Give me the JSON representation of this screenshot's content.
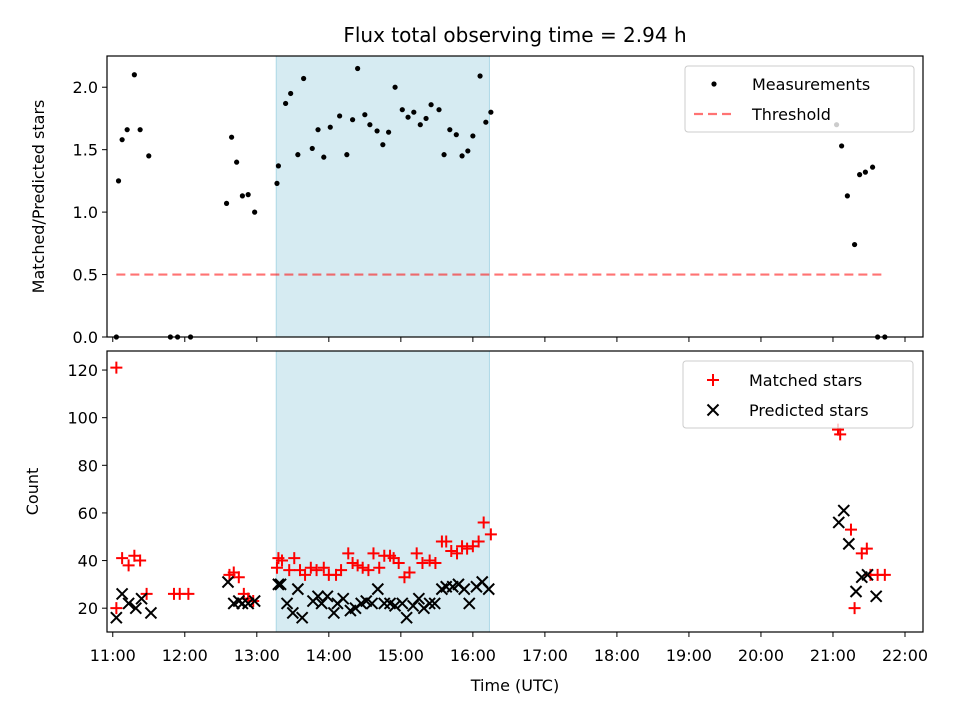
{
  "title": "Flux total observing time = 2.94 h",
  "colors": {
    "band": "#add8e6",
    "matched": "#ff0000",
    "predicted": "#000000",
    "threshold": "#ff0000",
    "measurement": "#000000"
  },
  "chart_data": [
    {
      "type": "scatter",
      "panel": "top",
      "ylabel": "Matched/Predicted stars",
      "xlim": [
        10.92,
        22.25
      ],
      "ylim": [
        0,
        2.25
      ],
      "yticks": [
        0.0,
        0.5,
        1.0,
        1.5,
        2.0
      ],
      "ytick_labels": [
        "0.0",
        "0.5",
        "1.0",
        "1.5",
        "2.0"
      ],
      "grid": false,
      "legend_position": "top-right",
      "shaded_interval": [
        13.27,
        16.23
      ],
      "threshold": {
        "name": "Threshold",
        "y": 0.5,
        "x": [
          11.05,
          21.7
        ],
        "style": "dashed"
      },
      "series": [
        {
          "name": "Measurements",
          "x": [
            11.05,
            11.08,
            11.13,
            11.2,
            11.3,
            11.38,
            11.5,
            11.8,
            11.9,
            12.08,
            12.58,
            12.65,
            12.72,
            12.8,
            12.88,
            12.97,
            13.28,
            13.3,
            13.4,
            13.47,
            13.57,
            13.65,
            13.77,
            13.85,
            13.93,
            14.02,
            14.15,
            14.25,
            14.33,
            14.4,
            14.5,
            14.57,
            14.67,
            14.75,
            14.83,
            14.92,
            15.02,
            15.1,
            15.18,
            15.27,
            15.35,
            15.42,
            15.53,
            15.6,
            15.68,
            15.77,
            15.85,
            15.93,
            16.0,
            16.1,
            16.18,
            16.25,
            21.05,
            21.12,
            21.2,
            21.3,
            21.37,
            21.45,
            21.55,
            21.62,
            21.72
          ],
          "y": [
            0.0,
            1.25,
            1.58,
            1.66,
            2.1,
            1.66,
            1.45,
            0.0,
            0.0,
            0.0,
            1.07,
            1.6,
            1.4,
            1.13,
            1.14,
            1.0,
            1.23,
            1.37,
            1.87,
            1.95,
            1.46,
            2.07,
            1.51,
            1.66,
            1.44,
            1.68,
            1.77,
            1.46,
            1.74,
            2.15,
            1.78,
            1.7,
            1.65,
            1.54,
            1.64,
            2.0,
            1.82,
            1.76,
            1.8,
            1.7,
            1.75,
            1.86,
            1.82,
            1.46,
            1.66,
            1.62,
            1.45,
            1.49,
            1.61,
            2.09,
            1.72,
            1.8,
            1.7,
            1.53,
            1.13,
            0.74,
            1.3,
            1.32,
            1.36,
            0.0,
            0.0
          ]
        }
      ]
    },
    {
      "type": "scatter",
      "panel": "bottom",
      "xlabel": "Time (UTC)",
      "ylabel": "Count",
      "xlim": [
        10.92,
        22.25
      ],
      "ylim": [
        10,
        128
      ],
      "xticks": [
        11,
        12,
        13,
        14,
        15,
        16,
        17,
        18,
        19,
        20,
        21,
        22
      ],
      "xtick_labels": [
        "11:00",
        "12:00",
        "13:00",
        "14:00",
        "15:00",
        "16:00",
        "17:00",
        "18:00",
        "19:00",
        "20:00",
        "21:00",
        "22:00"
      ],
      "yticks": [
        20,
        40,
        60,
        80,
        100,
        120
      ],
      "ytick_labels": [
        "20",
        "40",
        "60",
        "80",
        "100",
        "120"
      ],
      "grid": false,
      "legend_position": "top-right",
      "shaded_interval": [
        13.27,
        16.23
      ],
      "series": [
        {
          "name": "Matched stars",
          "marker": "+",
          "x": [
            11.05,
            11.05,
            11.13,
            11.22,
            11.3,
            11.38,
            11.47,
            11.85,
            11.93,
            12.05,
            12.62,
            12.68,
            12.75,
            12.82,
            12.88,
            12.95,
            13.28,
            13.3,
            13.35,
            13.45,
            13.52,
            13.6,
            13.67,
            13.75,
            13.83,
            13.93,
            14.0,
            14.1,
            14.17,
            14.27,
            14.33,
            14.4,
            14.47,
            14.55,
            14.62,
            14.7,
            14.77,
            14.85,
            14.9,
            14.97,
            15.05,
            15.12,
            15.22,
            15.3,
            15.4,
            15.48,
            15.57,
            15.63,
            15.7,
            15.78,
            15.85,
            15.92,
            16.0,
            16.08,
            16.15,
            16.25,
            21.07,
            21.1,
            21.25,
            21.3,
            21.4,
            21.47,
            21.52,
            21.62,
            21.72
          ],
          "y": [
            121,
            20,
            41,
            38,
            42,
            40,
            26,
            26,
            26,
            26,
            34,
            35,
            33,
            26,
            24,
            23,
            37,
            41,
            40,
            36,
            41,
            36,
            34,
            37,
            36,
            37,
            34,
            34,
            36,
            43,
            39,
            38,
            37,
            36,
            43,
            37,
            42,
            42,
            41,
            39,
            33,
            35,
            43,
            39,
            40,
            39,
            48,
            48,
            44,
            43,
            46,
            45,
            46,
            48,
            56,
            51,
            95,
            93,
            53,
            20,
            43,
            45,
            34,
            34,
            34
          ]
        },
        {
          "name": "Predicted stars",
          "marker": "x",
          "x": [
            11.05,
            11.13,
            11.22,
            11.32,
            11.4,
            11.53,
            12.6,
            12.68,
            12.75,
            12.8,
            12.88,
            12.97,
            13.3,
            13.33,
            13.42,
            13.5,
            13.57,
            13.63,
            13.78,
            13.85,
            13.9,
            13.98,
            14.07,
            14.12,
            14.2,
            14.3,
            14.37,
            14.45,
            14.52,
            14.6,
            14.68,
            14.77,
            14.85,
            14.92,
            15.02,
            15.08,
            15.17,
            15.25,
            15.32,
            15.4,
            15.47,
            15.57,
            15.63,
            15.72,
            15.8,
            15.88,
            15.95,
            16.05,
            16.13,
            16.22,
            21.08,
            21.15,
            21.22,
            21.32,
            21.4,
            21.48,
            21.6
          ],
          "y": [
            16,
            26,
            22,
            20,
            24,
            18,
            31,
            22,
            23,
            22,
            22,
            23,
            30,
            30,
            22,
            18,
            28,
            16,
            23,
            25,
            22,
            25,
            18,
            22,
            24,
            19,
            20,
            22,
            23,
            22,
            28,
            22,
            22,
            21,
            22,
            16,
            21,
            24,
            20,
            22,
            22,
            28,
            29,
            29,
            30,
            28,
            22,
            29,
            31,
            28,
            56,
            61,
            47,
            27,
            33,
            34,
            25
          ]
        }
      ]
    }
  ]
}
